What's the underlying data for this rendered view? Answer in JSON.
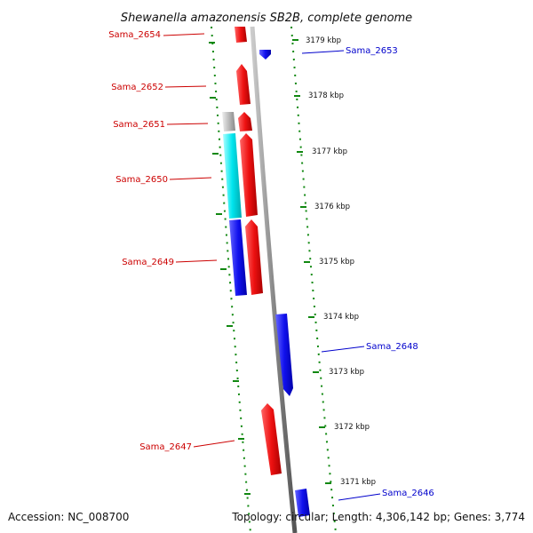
{
  "title": "Shewanella amazonensis SB2B, complete genome",
  "footer": {
    "accession": "Accession: NC_008700",
    "topology": "Topology: circular; Length: 4,306,142 bp; Genes: 3,774"
  },
  "colors": {
    "forward_gene": "#ee1111",
    "reverse_gene": "#1111ee",
    "cyan_gene": "#00e5ee",
    "grey_gene": "#bbbbbb",
    "backbone": "#888888",
    "dots": "#118811",
    "red_label": "#cc0000",
    "blue_label": "#0000cc"
  },
  "scale_ticks": [
    "3179 kbp",
    "3178 kbp",
    "3177 kbp",
    "3176 kbp",
    "3175 kbp",
    "3174 kbp",
    "3173 kbp",
    "3172 kbp",
    "3171 kbp"
  ],
  "genes": [
    {
      "name": "Sama_2654",
      "strand": "forward"
    },
    {
      "name": "Sama_2653",
      "strand": "reverse"
    },
    {
      "name": "Sama_2652",
      "strand": "forward"
    },
    {
      "name": "Sama_2651",
      "strand": "forward"
    },
    {
      "name": "Sama_2650",
      "strand": "forward"
    },
    {
      "name": "Sama_2649",
      "strand": "forward"
    },
    {
      "name": "Sama_2648",
      "strand": "reverse"
    },
    {
      "name": "Sama_2647",
      "strand": "forward"
    },
    {
      "name": "Sama_2646",
      "strand": "reverse"
    }
  ]
}
